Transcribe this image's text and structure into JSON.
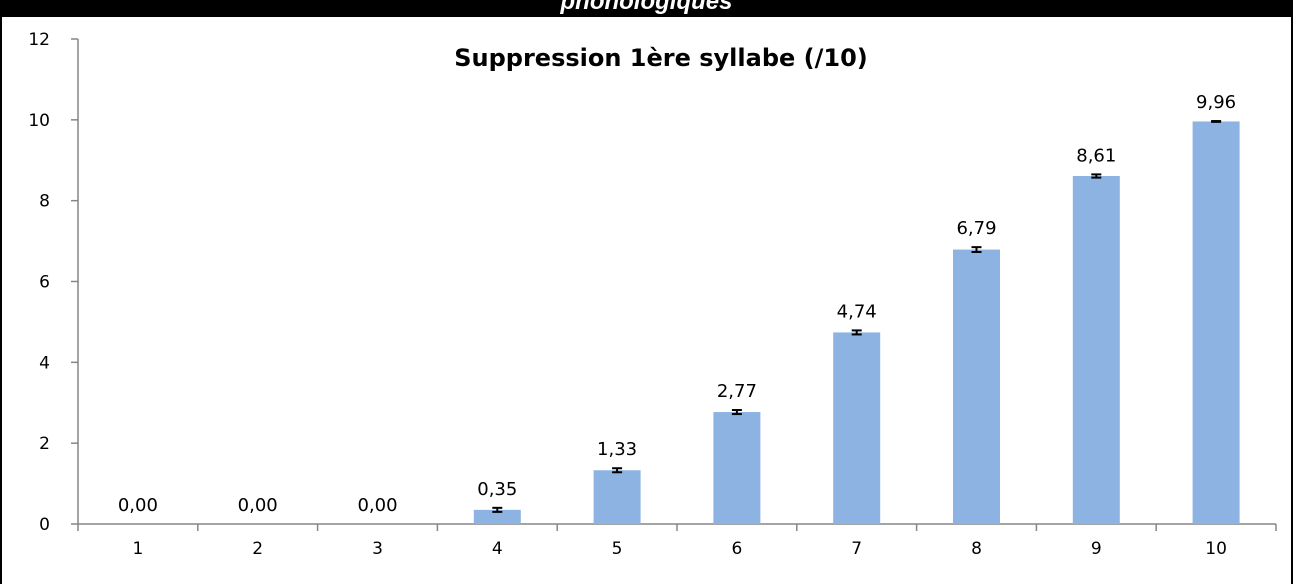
{
  "header": {
    "text": "phonologiques"
  },
  "chart_data": {
    "type": "bar",
    "title": "Suppression 1ère syllabe (/10)",
    "xlabel": "",
    "ylabel": "",
    "categories": [
      "1",
      "2",
      "3",
      "4",
      "5",
      "6",
      "7",
      "8",
      "9",
      "10"
    ],
    "values": [
      0,
      0,
      0,
      0.35,
      1.33,
      2.77,
      4.74,
      6.79,
      8.61,
      9.96
    ],
    "data_labels": [
      "0,00",
      "0,00",
      "0,00",
      "0,35",
      "1,33",
      "2,77",
      "4,74",
      "6,79",
      "8,61",
      "9,96"
    ],
    "error_bars": [
      null,
      null,
      null,
      0.05,
      0.05,
      0.05,
      0.05,
      0.06,
      0.04,
      0.01
    ],
    "ylim": [
      0,
      12
    ],
    "yticks": [
      0,
      2,
      4,
      6,
      8,
      10,
      12
    ],
    "grid": false,
    "legend": "none",
    "bar_color": "#8DB3E2"
  }
}
